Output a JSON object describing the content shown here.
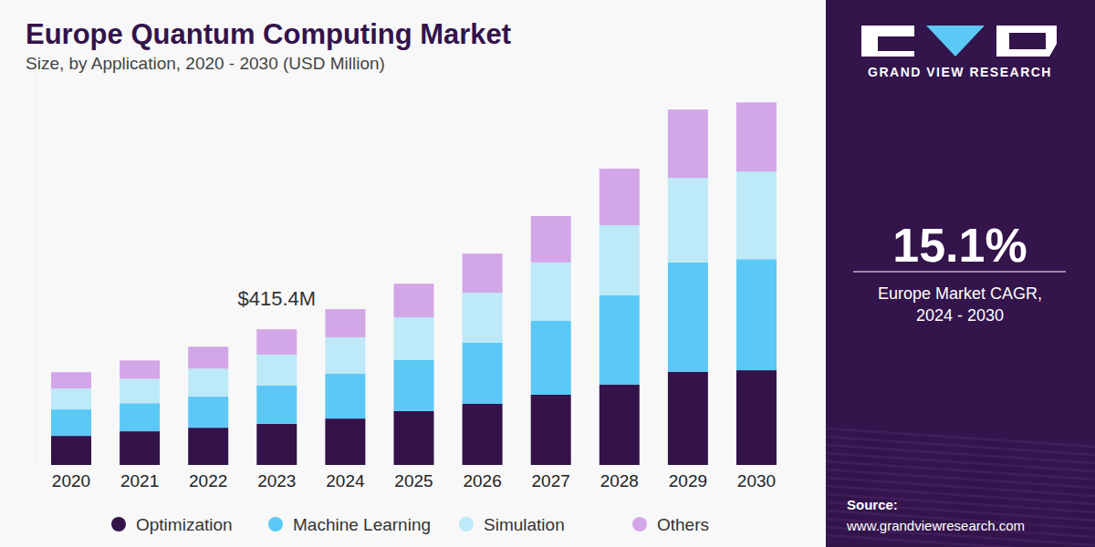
{
  "chart_data": {
    "type": "bar",
    "stacked": true,
    "title": "Europe Quantum Computing Market",
    "subtitle": "Size, by Application, 2020 - 2030 (USD Million)",
    "categories": [
      "2020",
      "2021",
      "2022",
      "2023",
      "2024",
      "2025",
      "2026",
      "2027",
      "2028",
      "2029",
      "2030"
    ],
    "series": [
      {
        "name": "Optimization",
        "color": "#33134a",
        "values": [
          89,
          103,
          114,
          126,
          142,
          165,
          187,
          215,
          246,
          285,
          290
        ]
      },
      {
        "name": "Machine Learning",
        "color": "#5bc8f5",
        "values": [
          81,
          86,
          95,
          117,
          137,
          156,
          187,
          226,
          273,
          335,
          340
        ]
      },
      {
        "name": "Simulation",
        "color": "#bde9f8",
        "values": [
          64,
          75,
          86,
          95,
          112,
          131,
          153,
          179,
          215,
          259,
          268
        ]
      },
      {
        "name": "Others",
        "color": "#d3a6e8",
        "values": [
          50,
          56,
          67,
          77.4,
          86,
          103,
          120,
          142,
          173,
          209,
          212
        ]
      }
    ],
    "ylim": [
      0,
      1200
    ],
    "tick_labels": "x",
    "grid": false,
    "legend": "bottom",
    "annotations": [
      {
        "text": "$415.4M",
        "x": "2023"
      }
    ]
  },
  "panel": {
    "brand": "GRAND VIEW RESEARCH",
    "cagr": "15.1%",
    "cagr_label": [
      "Europe Market CAGR,",
      "2024 - 2030"
    ],
    "source_label": "Source:",
    "source_url": "www.grandviewresearch.com"
  }
}
